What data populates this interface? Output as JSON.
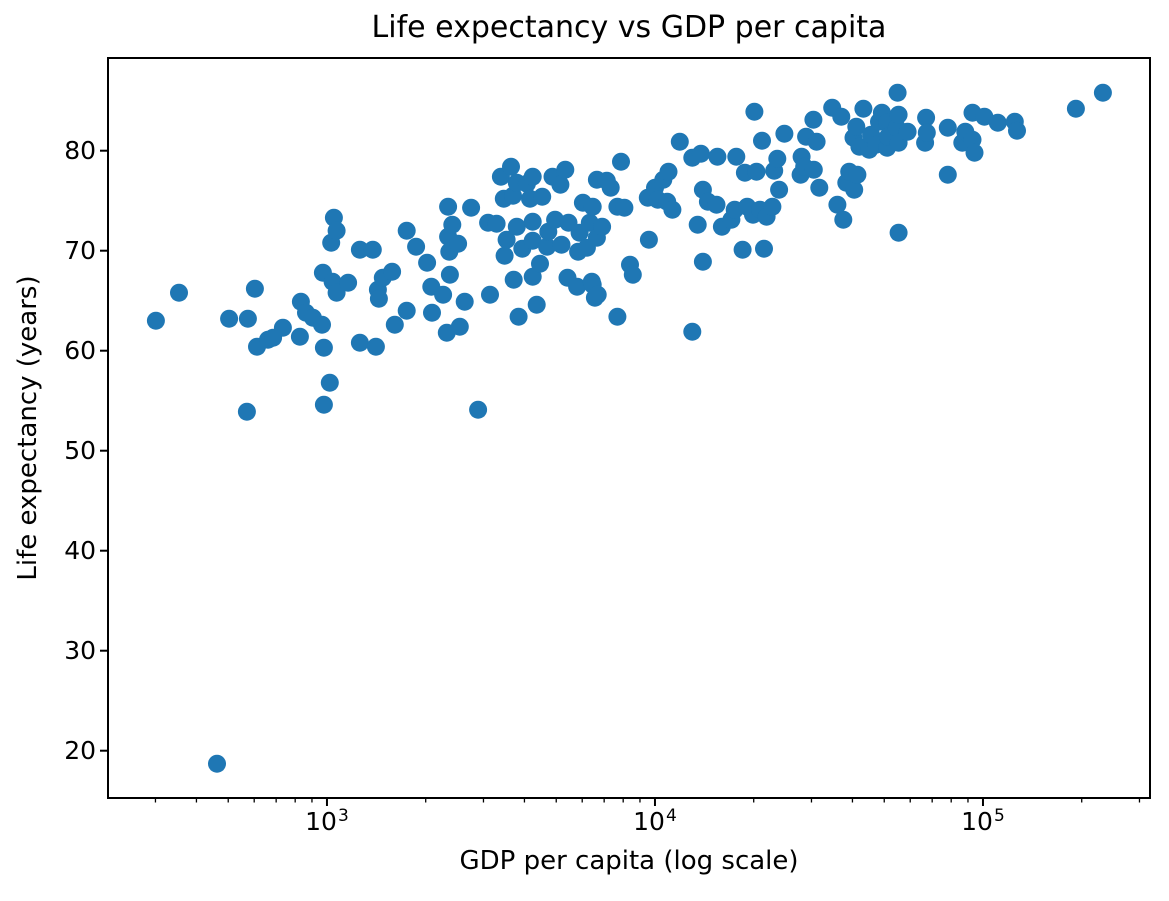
{
  "figure": {
    "title": "Life expectancy vs GDP per capita",
    "xlabel": "GDP per capita (log scale)",
    "ylabel": "Life expectancy (years)",
    "background_color": "#ffffff",
    "frame_color": "#000000",
    "marker_color": "#1f77b4"
  },
  "chart_data": {
    "type": "scatter",
    "title": "Life expectancy vs GDP per capita",
    "xlabel": "GDP per capita (log scale)",
    "ylabel": "Life expectancy (years)",
    "x_scale": "log",
    "y_scale": "linear",
    "grid": false,
    "legend": null,
    "xlim": [
      215,
      323000
    ],
    "ylim": [
      15.27,
      89.27
    ],
    "x_major_ticks": [
      1000,
      10000,
      100000
    ],
    "x_major_tick_labels": [
      "10^3",
      "10^4",
      "10^5"
    ],
    "y_ticks": [
      20,
      30,
      40,
      50,
      60,
      70,
      80
    ],
    "y_tick_labels": [
      "20",
      "30",
      "40",
      "50",
      "60",
      "70",
      "80"
    ],
    "marker": {
      "color": "#1f77b4",
      "radius_px": 9
    },
    "points": [
      [
        301,
        63.0
      ],
      [
        354,
        65.8
      ],
      [
        462,
        18.7
      ],
      [
        503,
        63.2
      ],
      [
        570,
        53.9
      ],
      [
        574,
        63.2
      ],
      [
        603,
        66.2
      ],
      [
        612,
        60.4
      ],
      [
        661,
        61.1
      ],
      [
        685,
        61.3
      ],
      [
        734,
        62.3
      ],
      [
        827,
        61.4
      ],
      [
        833,
        64.9
      ],
      [
        863,
        63.8
      ],
      [
        906,
        63.3
      ],
      [
        966,
        62.6
      ],
      [
        972,
        67.8
      ],
      [
        979,
        60.3
      ],
      [
        979,
        54.6
      ],
      [
        1020,
        56.8
      ],
      [
        1030,
        70.8
      ],
      [
        1040,
        66.9
      ],
      [
        1050,
        73.3
      ],
      [
        1070,
        65.8
      ],
      [
        1070,
        72.0
      ],
      [
        1160,
        66.8
      ],
      [
        1260,
        70.1
      ],
      [
        1260,
        60.8
      ],
      [
        1380,
        70.1
      ],
      [
        1410,
        60.4
      ],
      [
        1430,
        66.1
      ],
      [
        1440,
        65.2
      ],
      [
        1480,
        67.3
      ],
      [
        1580,
        67.9
      ],
      [
        1610,
        62.6
      ],
      [
        1750,
        64.0
      ],
      [
        1750,
        72.0
      ],
      [
        1870,
        70.4
      ],
      [
        2020,
        68.8
      ],
      [
        2080,
        66.4
      ],
      [
        2090,
        63.8
      ],
      [
        2260,
        65.6
      ],
      [
        2320,
        61.8
      ],
      [
        2340,
        74.4
      ],
      [
        2340,
        71.4
      ],
      [
        2360,
        69.9
      ],
      [
        2370,
        67.6
      ],
      [
        2410,
        72.6
      ],
      [
        2510,
        70.7
      ],
      [
        2540,
        62.4
      ],
      [
        2630,
        64.9
      ],
      [
        2750,
        74.3
      ],
      [
        2890,
        54.1
      ],
      [
        3100,
        72.8
      ],
      [
        3140,
        65.6
      ],
      [
        3290,
        72.7
      ],
      [
        3390,
        77.4
      ],
      [
        3460,
        75.2
      ],
      [
        3480,
        69.5
      ],
      [
        3530,
        71.1
      ],
      [
        3640,
        78.4
      ],
      [
        3690,
        75.5
      ],
      [
        3710,
        67.1
      ],
      [
        3790,
        76.8
      ],
      [
        3790,
        72.4
      ],
      [
        3840,
        63.4
      ],
      [
        3940,
        70.2
      ],
      [
        4070,
        76.7
      ],
      [
        4160,
        75.2
      ],
      [
        4240,
        77.4
      ],
      [
        4240,
        72.9
      ],
      [
        4240,
        71.0
      ],
      [
        4240,
        67.4
      ],
      [
        4360,
        64.6
      ],
      [
        4460,
        68.7
      ],
      [
        4530,
        75.4
      ],
      [
        4690,
        70.4
      ],
      [
        4730,
        71.9
      ],
      [
        4870,
        77.4
      ],
      [
        4960,
        73.1
      ],
      [
        5150,
        76.6
      ],
      [
        5190,
        70.6
      ],
      [
        5330,
        78.1
      ],
      [
        5410,
        67.3
      ],
      [
        5450,
        72.8
      ],
      [
        5790,
        66.4
      ],
      [
        5830,
        69.9
      ],
      [
        5890,
        71.8
      ],
      [
        6030,
        74.8
      ],
      [
        6200,
        70.3
      ],
      [
        6330,
        72.8
      ],
      [
        6420,
        66.9
      ],
      [
        6460,
        74.4
      ],
      [
        6460,
        66.6
      ],
      [
        6560,
        65.3
      ],
      [
        6650,
        77.1
      ],
      [
        6650,
        71.3
      ],
      [
        6690,
        65.6
      ],
      [
        6900,
        72.4
      ],
      [
        7130,
        77.0
      ],
      [
        7330,
        76.3
      ],
      [
        7680,
        74.4
      ],
      [
        7680,
        63.4
      ],
      [
        7880,
        78.9
      ],
      [
        8070,
        74.3
      ],
      [
        8390,
        68.6
      ],
      [
        8560,
        67.6
      ],
      [
        9510,
        75.3
      ],
      [
        9580,
        71.1
      ],
      [
        10000,
        76.3
      ],
      [
        10200,
        75.1
      ],
      [
        10600,
        77.1
      ],
      [
        10900,
        74.9
      ],
      [
        11000,
        77.9
      ],
      [
        11300,
        74.1
      ],
      [
        11900,
        80.9
      ],
      [
        13000,
        61.9
      ],
      [
        13000,
        79.3
      ],
      [
        13500,
        72.6
      ],
      [
        13800,
        79.7
      ],
      [
        14000,
        76.1
      ],
      [
        14000,
        68.9
      ],
      [
        14500,
        74.9
      ],
      [
        15400,
        74.6
      ],
      [
        15500,
        79.4
      ],
      [
        16000,
        72.4
      ],
      [
        17100,
        73.1
      ],
      [
        17500,
        74.1
      ],
      [
        17700,
        79.4
      ],
      [
        18500,
        70.1
      ],
      [
        18800,
        77.8
      ],
      [
        19100,
        74.4
      ],
      [
        19900,
        73.6
      ],
      [
        20100,
        83.9
      ],
      [
        20400,
        77.9
      ],
      [
        20900,
        74.1
      ],
      [
        21200,
        81.0
      ],
      [
        21500,
        70.2
      ],
      [
        21900,
        73.4
      ],
      [
        22800,
        74.4
      ],
      [
        23100,
        78.0
      ],
      [
        23600,
        79.2
      ],
      [
        23900,
        76.1
      ],
      [
        24800,
        81.7
      ],
      [
        27800,
        77.6
      ],
      [
        28000,
        79.4
      ],
      [
        28500,
        78.4
      ],
      [
        28900,
        81.4
      ],
      [
        30400,
        83.1
      ],
      [
        30500,
        78.1
      ],
      [
        31100,
        80.9
      ],
      [
        31700,
        76.3
      ],
      [
        34700,
        84.3
      ],
      [
        36000,
        74.6
      ],
      [
        37000,
        83.4
      ],
      [
        37500,
        73.1
      ],
      [
        38300,
        76.8
      ],
      [
        39100,
        77.9
      ],
      [
        40300,
        81.3
      ],
      [
        40500,
        76.1
      ],
      [
        41100,
        82.4
      ],
      [
        41400,
        77.6
      ],
      [
        42000,
        80.4
      ],
      [
        43200,
        84.2
      ],
      [
        45000,
        80.1
      ],
      [
        45600,
        81.6
      ],
      [
        47200,
        80.6
      ],
      [
        48200,
        82.9
      ],
      [
        49200,
        83.8
      ],
      [
        51000,
        82.8
      ],
      [
        51000,
        80.3
      ],
      [
        51300,
        81.4
      ],
      [
        54600,
        82.3
      ],
      [
        54900,
        85.8
      ],
      [
        55300,
        83.6
      ],
      [
        55300,
        80.8
      ],
      [
        55300,
        71.8
      ],
      [
        58900,
        81.9
      ],
      [
        66600,
        80.8
      ],
      [
        67100,
        83.3
      ],
      [
        67400,
        81.8
      ],
      [
        78100,
        82.3
      ],
      [
        78100,
        77.6
      ],
      [
        86500,
        80.8
      ],
      [
        88300,
        81.9
      ],
      [
        92900,
        83.8
      ],
      [
        92900,
        81.1
      ],
      [
        94200,
        79.8
      ],
      [
        101000,
        83.4
      ],
      [
        111000,
        82.8
      ],
      [
        125000,
        82.9
      ],
      [
        127000,
        82.0
      ],
      [
        192000,
        84.2
      ],
      [
        232000,
        85.8
      ]
    ]
  }
}
